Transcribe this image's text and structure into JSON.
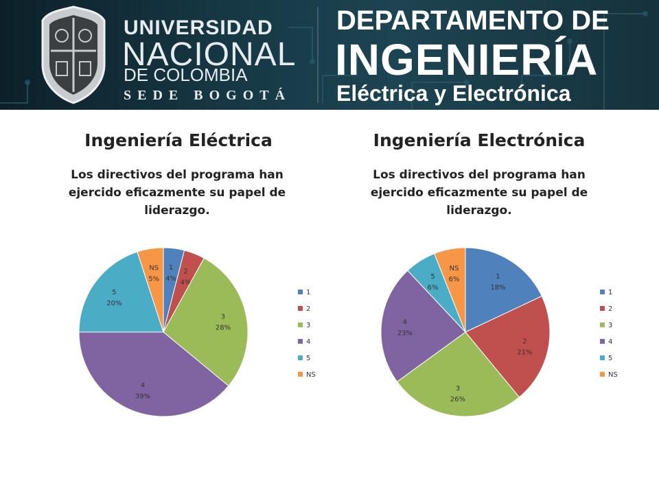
{
  "banner": {
    "uni_line1": "UNIVERSIDAD",
    "uni_line2": "NACIONAL",
    "uni_line3": "DE COLOMBIA",
    "uni_line4": "SEDE BOGOTÁ",
    "dept_line1": "DEPARTAMENTO DE",
    "dept_line2": "INGENIERÍA",
    "dept_line3": "Eléctrica y Electrónica"
  },
  "chart_data": [
    {
      "type": "pie",
      "title": "Ingeniería Eléctrica",
      "subtitle": "Los directivos del programa han ejercido eficazmente su papel de liderazgo.",
      "categories": [
        "1",
        "2",
        "3",
        "4",
        "5",
        "NS"
      ],
      "values": [
        4,
        4,
        28,
        39,
        20,
        5
      ],
      "value_labels": [
        "4%",
        "4%",
        "28%",
        "39%",
        "20%",
        "5%"
      ],
      "colors": [
        "#4f81bd",
        "#c0504d",
        "#9bbb59",
        "#8064a2",
        "#4bacc6",
        "#f79646"
      ],
      "legend": "right"
    },
    {
      "type": "pie",
      "title": "Ingeniería Electrónica",
      "subtitle": "Los directivos del programa han ejercido eficazmente su papel de liderazgo.",
      "categories": [
        "1",
        "2",
        "3",
        "4",
        "5",
        "NS"
      ],
      "values": [
        18,
        21,
        26,
        23,
        6,
        6
      ],
      "value_labels": [
        "18%",
        "21%",
        "26%",
        "23%",
        "6%",
        "6%"
      ],
      "colors": [
        "#4f81bd",
        "#c0504d",
        "#9bbb59",
        "#8064a2",
        "#4bacc6",
        "#f79646"
      ],
      "legend": "right"
    }
  ]
}
